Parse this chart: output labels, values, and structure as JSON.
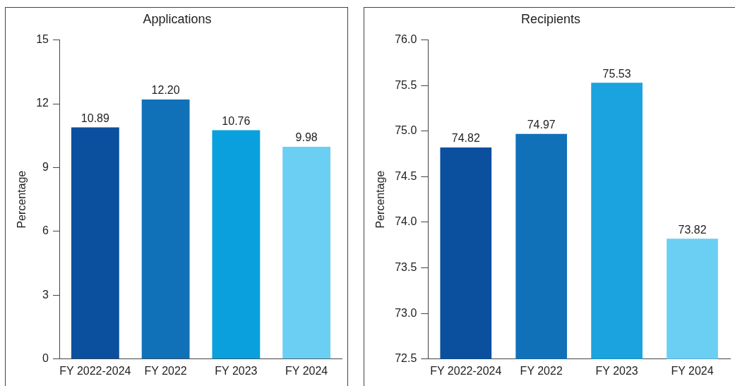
{
  "chart_data": [
    {
      "type": "bar",
      "title": "Applications",
      "ylabel": "Percentage",
      "categories": [
        "FY 2022-2024",
        "FY 2022",
        "FY 2023",
        "FY 2024"
      ],
      "values": [
        10.89,
        12.2,
        10.76,
        9.98
      ],
      "colors": [
        "#0b4f9f",
        "#1071b9",
        "#0aa0de",
        "#6bcff4"
      ],
      "value_labels": [
        "10.89",
        "12.20",
        "10.76",
        "9.98"
      ],
      "ylim": [
        0,
        15
      ],
      "yticks": [
        0,
        3,
        6,
        9,
        12,
        15
      ],
      "grid": false,
      "legend": false
    },
    {
      "type": "bar",
      "title": "Recipients",
      "ylabel": "Percentage",
      "categories": [
        "FY 2022-2024",
        "FY 2022",
        "FY 2023",
        "FY 2024"
      ],
      "values": [
        74.82,
        74.97,
        75.53,
        73.82
      ],
      "colors": [
        "#0b4f9f",
        "#1071b9",
        "#1aa3de",
        "#6bcff4"
      ],
      "value_labels": [
        "74.82",
        "74.97",
        "75.53",
        "73.82"
      ],
      "ylim": [
        72.5,
        76.0
      ],
      "yticks": [
        {
          "value": 72.5,
          "label": "72.5"
        },
        {
          "value": 73,
          "label": "73.0"
        },
        {
          "value": 73.5,
          "label": "73.5"
        },
        {
          "value": 74,
          "label": "74.0"
        },
        {
          "value": 74.5,
          "label": "74.5"
        },
        {
          "value": 75,
          "label": "75.0"
        },
        {
          "value": 75.5,
          "label": "75.5"
        },
        {
          "value": 76,
          "label": "76.0"
        }
      ],
      "grid": false,
      "legend": false
    }
  ]
}
